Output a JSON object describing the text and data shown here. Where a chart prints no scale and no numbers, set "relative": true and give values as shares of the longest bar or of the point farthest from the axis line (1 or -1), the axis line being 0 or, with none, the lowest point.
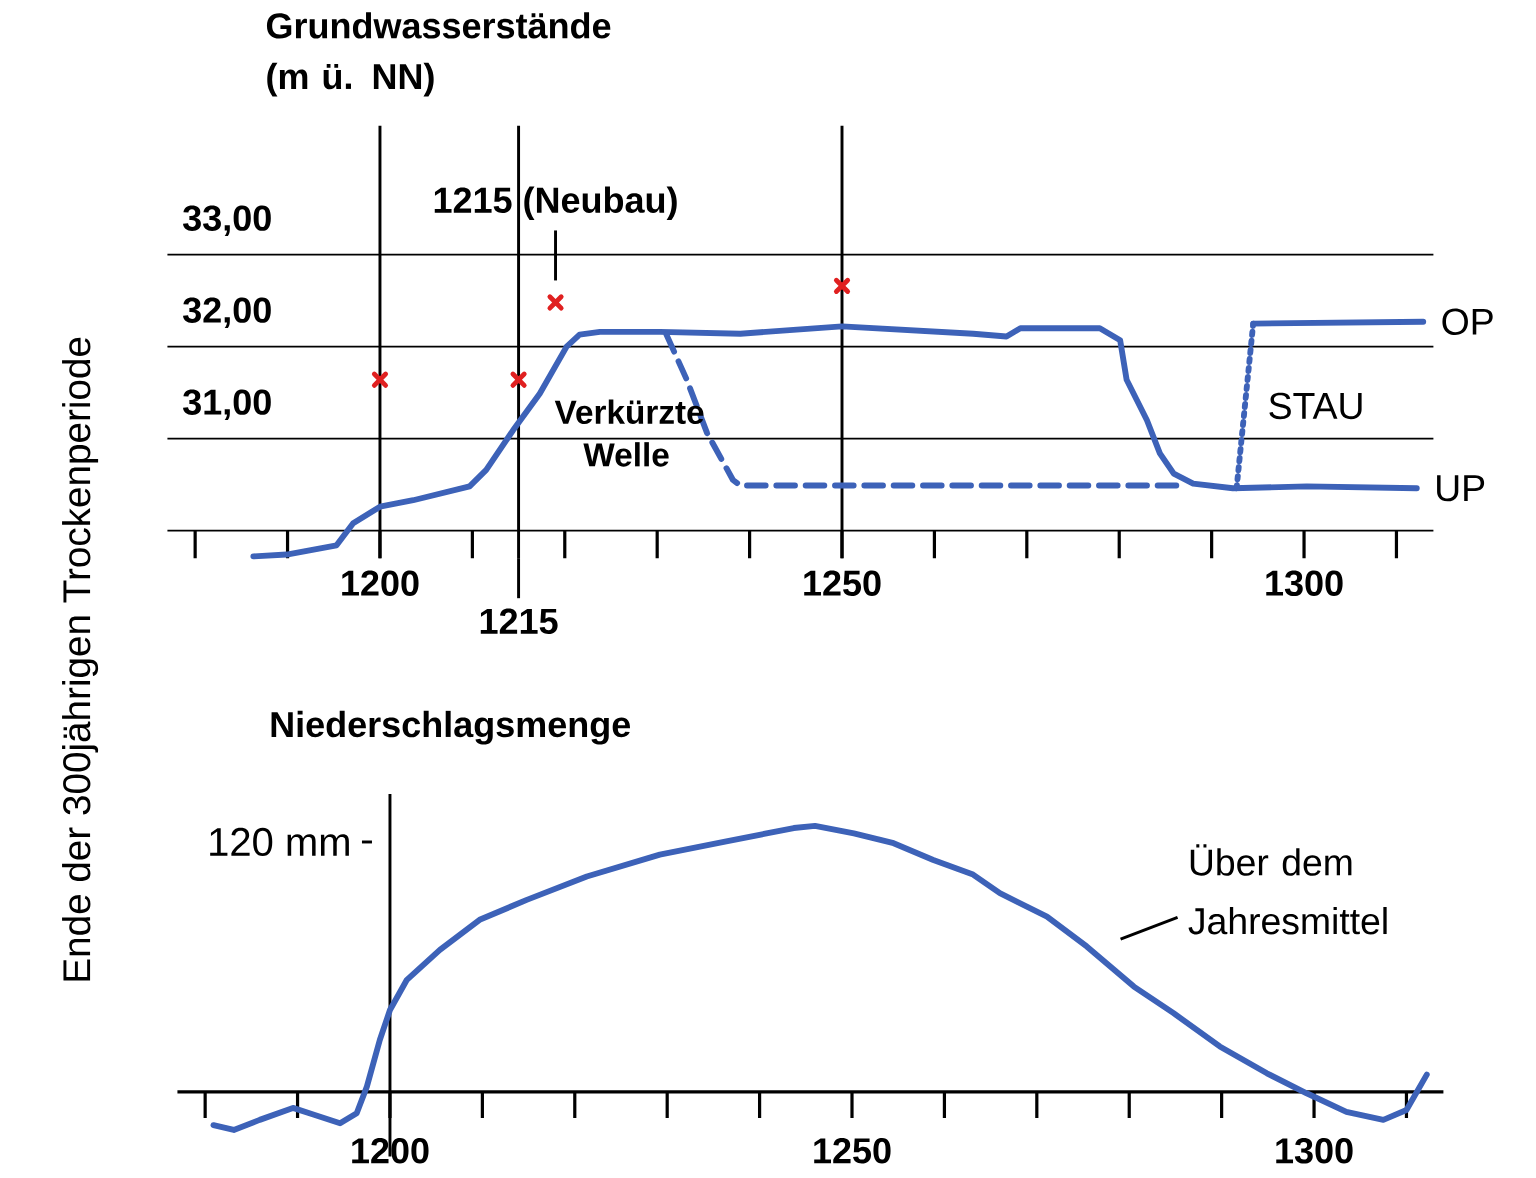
{
  "chart_data": [
    {
      "type": "line",
      "title": "Grundwasserstände (m ü. NN)",
      "ylabel": "Ende der 300jährigen Trockenperiode",
      "xlim": [
        1177,
        1314
      ],
      "xticks": [
        {
          "value": 1180,
          "label": null
        },
        {
          "value": 1190,
          "label": null
        },
        1200,
        {
          "value": 1210,
          "label": null
        },
        {
          "value": 1220,
          "label": null
        },
        {
          "value": 1230,
          "label": null
        },
        {
          "value": 1240,
          "label": null
        },
        1250,
        {
          "value": 1260,
          "label": null
        },
        {
          "value": 1270,
          "label": null
        },
        {
          "value": 1280,
          "label": null
        },
        {
          "value": 1290,
          "label": null
        },
        1300,
        {
          "value": 1310,
          "label": null
        }
      ],
      "ylim": [
        29.7,
        34.4
      ],
      "yticks": [
        {
          "value": 30,
          "label": null
        },
        {
          "value": 31,
          "label": "31,00"
        },
        {
          "value": 32,
          "label": "32,00"
        },
        {
          "value": 33,
          "label": "33,00"
        }
      ],
      "grid": "y",
      "series": [
        {
          "name": "UP",
          "color": "#3d62b8",
          "line_style": "solid",
          "x": [
            1186.3,
            1189.9,
            1195.3,
            1197.1,
            1200,
            1203.6,
            1209.7,
            1211.5,
            1214.4,
            1217.3,
            1220.2,
            1221.6,
            1223.8,
            1230.3,
            1239,
            1250,
            1264.2,
            1267.8,
            1269.3,
            1277.9,
            1280.1,
            1280.8,
            1283,
            1284.4,
            1285.9,
            1288,
            1292.3,
            1300.3,
            1312.2
          ],
          "values": [
            29.72,
            29.74,
            29.84,
            30.08,
            30.26,
            30.33,
            30.48,
            30.66,
            31.09,
            31.49,
            32.0,
            32.13,
            32.16,
            32.16,
            32.14,
            32.22,
            32.14,
            32.11,
            32.2,
            32.2,
            32.07,
            31.64,
            31.2,
            30.84,
            30.62,
            30.51,
            30.46,
            30.48,
            30.46
          ]
        },
        {
          "name": "OP",
          "color": "#3d62b8",
          "line_style": "solid",
          "x": [
            1294.5,
            1312.9
          ],
          "values": [
            32.25,
            32.27
          ]
        },
        {
          "name": "Verkürzte Welle",
          "color": "#3d62b8",
          "line_style": "dashed",
          "x": [
            1231,
            1233.2,
            1235.4,
            1238.2,
            1239,
            1286.6
          ],
          "values": [
            32.13,
            31.64,
            31.06,
            30.55,
            30.49,
            30.49
          ]
        },
        {
          "name": "STAU",
          "color": "#3d62b8",
          "line_style": "dotted",
          "x": [
            1292.7,
            1294.5
          ],
          "values": [
            30.46,
            32.25
          ]
        },
        {
          "type": "scatter",
          "color": "#e02020",
          "marker": "cross",
          "x": [
            1200,
            1215,
            1219,
            1250
          ],
          "values": [
            31.64,
            31.64,
            32.48,
            32.66
          ]
        }
      ],
      "ref_lines": [
        {
          "axis": "x",
          "value": 1200,
          "color": "#000000"
        },
        {
          "axis": "x",
          "value": 1215,
          "label": "1215",
          "color": "#000000"
        },
        {
          "axis": "x",
          "value": 1250,
          "color": "#000000"
        }
      ],
      "annotations": [
        {
          "text": "1215 (Neubau)",
          "x": 1219,
          "y": 32.48
        }
      ]
    },
    {
      "type": "line",
      "title": "Niederschlagsmenge",
      "relative": true,
      "xlim": [
        1177,
        1314
      ],
      "xticks": [
        {
          "value": 1180,
          "label": null
        },
        {
          "value": 1190,
          "label": null
        },
        1200,
        {
          "value": 1210,
          "label": null
        },
        {
          "value": 1220,
          "label": null
        },
        {
          "value": 1230,
          "label": null
        },
        {
          "value": 1240,
          "label": null
        },
        1250,
        {
          "value": 1260,
          "label": null
        },
        {
          "value": 1270,
          "label": null
        },
        {
          "value": 1280,
          "label": null
        },
        {
          "value": 1290,
          "label": null
        },
        1300,
        {
          "value": 1310,
          "label": null
        }
      ],
      "series": [
        {
          "color": "#3d62b8",
          "x": [
            1180.9,
            1183.1,
            1185.9,
            1189.5,
            1191.7,
            1194.6,
            1196.4,
            1197.5,
            1198.9,
            1200,
            1201.8,
            1205.4,
            1209.7,
            1214.8,
            1221.3,
            1229.2,
            1236.4,
            1243.7,
            1246,
            1250.2,
            1254.5,
            1258.8,
            1263.1,
            1266,
            1271.1,
            1275.4,
            1280.5,
            1284.8,
            1289.8,
            1294.9,
            1299.2,
            1303.5,
            1307.5,
            1310,
            1312.2
          ],
          "values": [
            -0.125,
            -0.143,
            -0.105,
            -0.06,
            -0.085,
            -0.118,
            -0.08,
            0.02,
            0.195,
            0.308,
            0.42,
            0.534,
            0.647,
            0.722,
            0.81,
            0.892,
            0.942,
            0.992,
            1.0,
            0.972,
            0.935,
            0.872,
            0.817,
            0.747,
            0.659,
            0.547,
            0.396,
            0.296,
            0.171,
            0.07,
            -0.005,
            -0.075,
            -0.105,
            -0.068,
            0.065
          ]
        }
      ],
      "ref_lines": [
        {
          "axis": "x",
          "value": 1200,
          "color": "#000000"
        }
      ],
      "annotations": [
        "120 mm",
        "Über dem Jahresmittel"
      ]
    }
  ]
}
